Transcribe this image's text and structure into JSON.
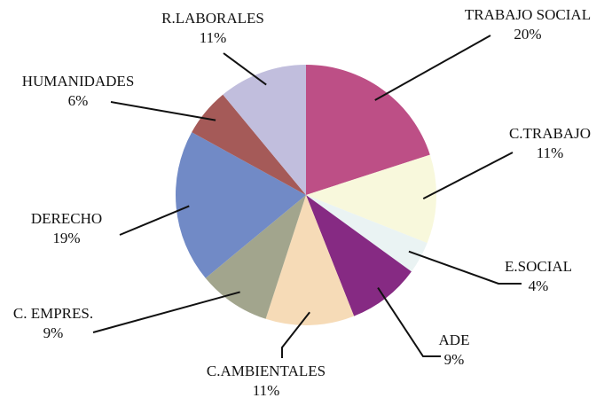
{
  "chart_data": {
    "type": "pie",
    "categories": [
      "TRABAJO SOCIAL",
      "C.TRABAJO",
      "E.SOCIAL",
      "ADE",
      "C.AMBIENTALES",
      "C. EMPRES.",
      "DERECHO",
      "HUMANIDADES",
      "R.LABORALES"
    ],
    "values": [
      20,
      11,
      4,
      9,
      11,
      9,
      19,
      6,
      11
    ],
    "value_labels": [
      "20%",
      "11%",
      "4%",
      "9%",
      "11%",
      "9%",
      "19%",
      "6%",
      "11%"
    ],
    "colors": [
      "#bd4f86",
      "#f8f8dc",
      "#eaf3f3",
      "#862a83",
      "#f6dbb7",
      "#a2a58d",
      "#718ac6",
      "#a55a58",
      "#c1bedd"
    ]
  }
}
